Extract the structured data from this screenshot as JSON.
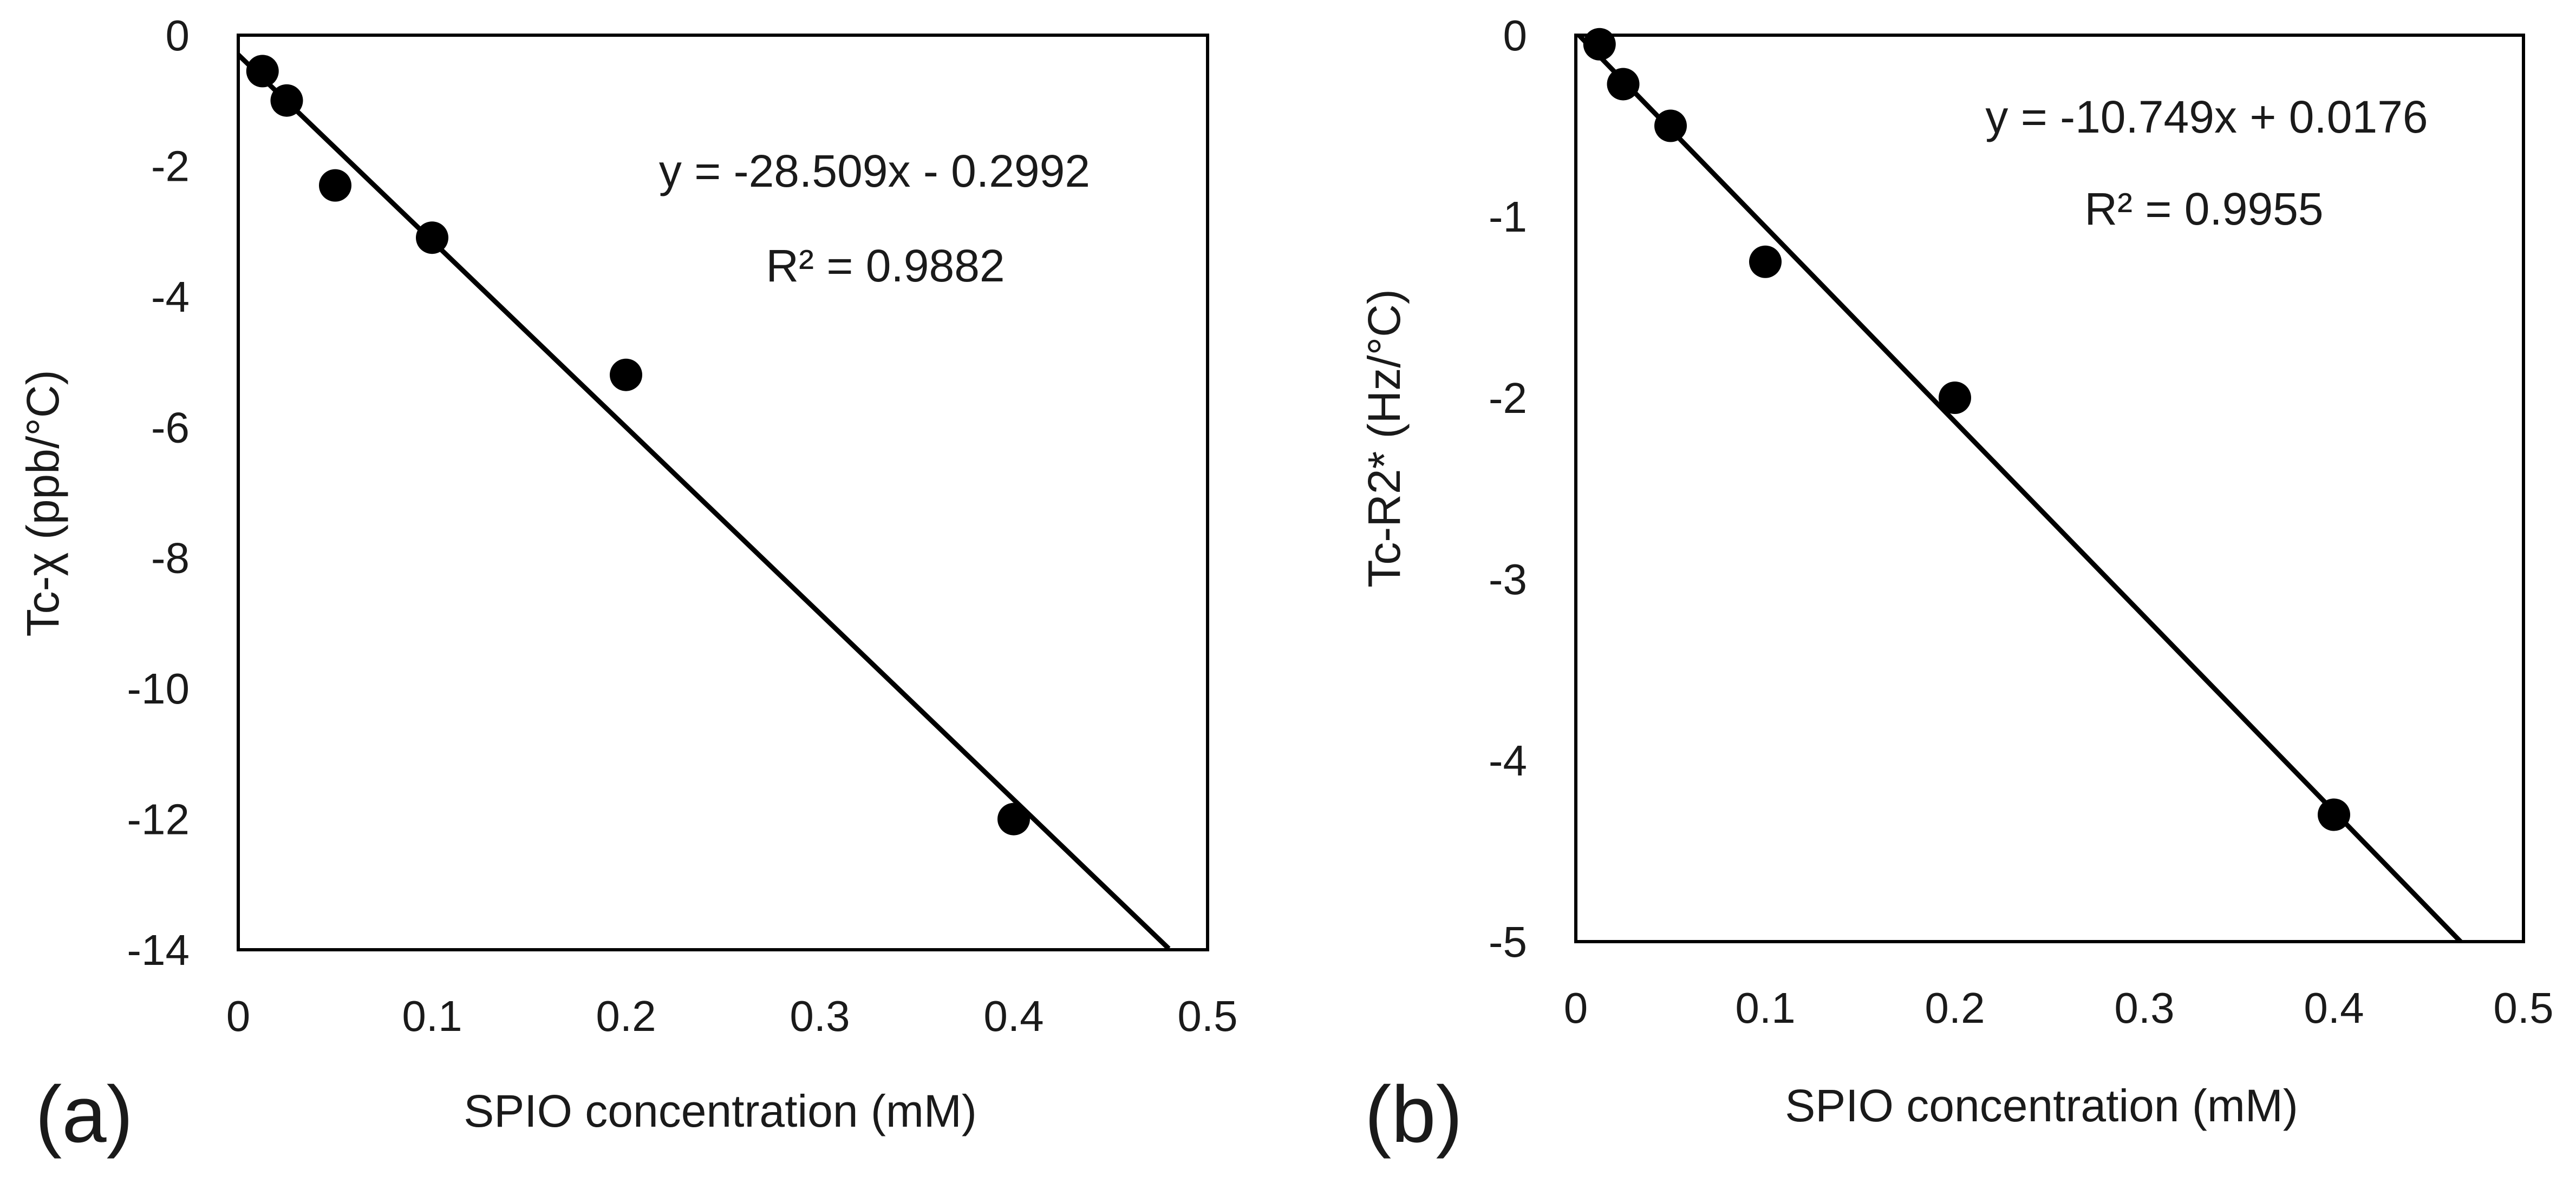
{
  "chart_data": [
    {
      "type": "scatter",
      "panel_label": "(a)",
      "title": "",
      "xlabel": "SPIO concentration (mM)",
      "ylabel": "Tc-χ (ppb/°C)",
      "xlim": [
        0,
        0.5
      ],
      "ylim": [
        -14,
        0
      ],
      "x_ticks": [
        0,
        0.1,
        0.2,
        0.3,
        0.4,
        0.5
      ],
      "x_tick_labels": [
        "0",
        "0.1",
        "0.2",
        "0.3",
        "0.4",
        "0.5"
      ],
      "y_ticks": [
        0,
        -2,
        -4,
        -6,
        -8,
        -10,
        -12,
        -14
      ],
      "y_tick_labels": [
        "0",
        "-2",
        "-4",
        "-6",
        "-8",
        "-10",
        "-12",
        "-14"
      ],
      "grid": false,
      "series": [
        {
          "name": "Tc-χ",
          "x": [
            0.0125,
            0.025,
            0.05,
            0.1,
            0.2,
            0.4
          ],
          "y": [
            -0.55,
            -1.0,
            -2.3,
            -3.1,
            -5.2,
            -12.0
          ]
        }
      ],
      "trendline": {
        "slope": -28.509,
        "intercept": -0.2992,
        "x_range": [
          0,
          0.48
        ],
        "equation_label": "y = -28.509x - 0.2992",
        "r2_label": "R² = 0.9882"
      }
    },
    {
      "type": "scatter",
      "panel_label": "(b)",
      "title": "",
      "xlabel": "SPIO concentration (mM)",
      "ylabel": "Tc-R2* (Hz/°C)",
      "xlim": [
        0,
        0.5
      ],
      "ylim": [
        -5,
        0
      ],
      "x_ticks": [
        0,
        0.1,
        0.2,
        0.3,
        0.4,
        0.5
      ],
      "x_tick_labels": [
        "0",
        "0.1",
        "0.2",
        "0.3",
        "0.4",
        "0.5"
      ],
      "y_ticks": [
        0,
        -1,
        -2,
        -3,
        -4,
        -5
      ],
      "y_tick_labels": [
        "0",
        "-1",
        "-2",
        "-3",
        "-4",
        "-5"
      ],
      "grid": false,
      "series": [
        {
          "name": "Tc-R2*",
          "x": [
            0.0125,
            0.025,
            0.05,
            0.1,
            0.2,
            0.4
          ],
          "y": [
            -0.05,
            -0.27,
            -0.5,
            -1.25,
            -2.0,
            -4.3
          ]
        }
      ],
      "trendline": {
        "slope": -10.749,
        "intercept": 0.0176,
        "x_range": [
          0,
          0.467
        ],
        "equation_label": "y = -10.749x + 0.0176",
        "r2_label": "R² = 0.9955"
      }
    }
  ],
  "colors": {
    "ink": "#000000",
    "text": "#1a1a1a",
    "background": "#ffffff"
  }
}
